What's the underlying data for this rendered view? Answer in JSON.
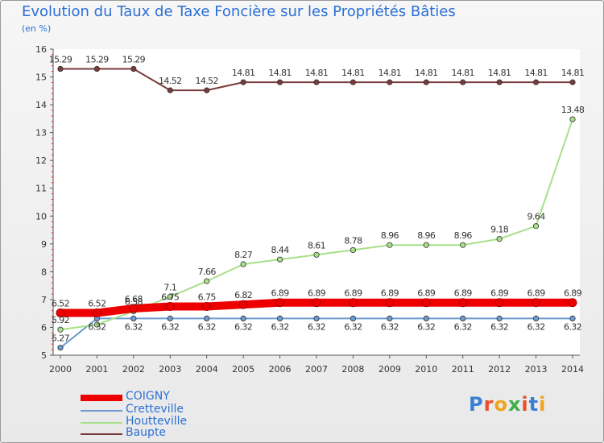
{
  "header": {
    "title": "Evolution du Taux de Taxe Foncière sur les Propriétés Bâties",
    "unit": "(en %)"
  },
  "chart_data": {
    "type": "line",
    "title": "Evolution du Taux de Taxe Foncière sur les Propriétés Bâties",
    "ylabel": "(en %)",
    "xlabel": "",
    "x": [
      "2000",
      "2001",
      "2002",
      "2003",
      "2004",
      "2005",
      "2006",
      "2007",
      "2008",
      "2009",
      "2010",
      "2011",
      "2012",
      "2013",
      "2014"
    ],
    "ylim": [
      5,
      16
    ],
    "yticks": [
      "5",
      "6",
      "7",
      "8",
      "9",
      "10",
      "11",
      "12",
      "13",
      "14",
      "15",
      "16"
    ],
    "grid": false,
    "legend_position": "bottom-left",
    "series": [
      {
        "name": "COIGNY",
        "color": "#ee0000",
        "values": [
          6.52,
          6.52,
          6.68,
          6.75,
          6.75,
          6.82,
          6.89,
          6.89,
          6.89,
          6.89,
          6.89,
          6.89,
          6.89,
          6.89,
          6.89
        ],
        "labels": [
          "6.52",
          "6.52",
          "6.68",
          "6.75",
          "6.75",
          "6.82",
          "6.89",
          "6.89",
          "6.89",
          "6.89",
          "6.89",
          "6.89",
          "6.89",
          "6.89",
          "6.89"
        ]
      },
      {
        "name": "Cretteville",
        "color": "#6b9bd1",
        "values": [
          5.27,
          6.32,
          6.32,
          6.32,
          6.32,
          6.32,
          6.32,
          6.32,
          6.32,
          6.32,
          6.32,
          6.32,
          6.32,
          6.32,
          6.32
        ],
        "labels": [
          "5.27",
          "6.32",
          "6.32",
          "6.32",
          "6.32",
          "6.32",
          "6.32",
          "6.32",
          "6.32",
          "6.32",
          "6.32",
          "6.32",
          "6.32",
          "6.32",
          "6.32"
        ]
      },
      {
        "name": "Houtteville",
        "color": "#a8e08a",
        "values": [
          5.92,
          6.1,
          6.58,
          7.1,
          7.66,
          8.27,
          8.44,
          8.61,
          8.78,
          8.96,
          8.96,
          8.96,
          9.18,
          9.64,
          13.48
        ],
        "labels": [
          "5.92",
          "",
          "6.58",
          "7.1",
          "7.66",
          "8.27",
          "8.44",
          "8.61",
          "8.78",
          "8.96",
          "8.96",
          "8.96",
          "9.18",
          "9.64",
          "13.48"
        ]
      },
      {
        "name": "Baupte",
        "color": "#7a3b3b",
        "values": [
          15.29,
          15.29,
          15.29,
          14.52,
          14.52,
          14.81,
          14.81,
          14.81,
          14.81,
          14.81,
          14.81,
          14.81,
          14.81,
          14.81,
          14.81
        ],
        "labels": [
          "15.29",
          "15.29",
          "15.29",
          "14.52",
          "14.52",
          "14.81",
          "14.81",
          "14.81",
          "14.81",
          "14.81",
          "14.81",
          "14.81",
          "14.81",
          "14.81",
          "14.81"
        ]
      }
    ]
  },
  "legend": [
    {
      "name": "COIGNY",
      "color": "#ee0000"
    },
    {
      "name": "Cretteville",
      "color": "#6b9bd1"
    },
    {
      "name": "Houtteville",
      "color": "#a8e08a"
    },
    {
      "name": "Baupte",
      "color": "#7a3b3b"
    }
  ],
  "logo": {
    "letters": [
      "P",
      "r",
      "o",
      "x",
      "i",
      "t",
      "i"
    ],
    "colors": [
      "#3a7fd5",
      "#e8502a",
      "#f0a21c",
      "#3fae49",
      "#e8502a",
      "#3a7fd5",
      "#f0a21c"
    ]
  }
}
